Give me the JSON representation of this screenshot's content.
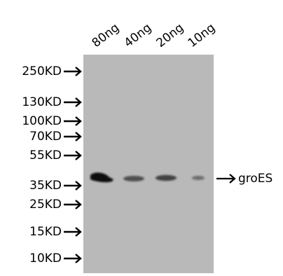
{
  "lanes": [
    {
      "label": "80ng"
    },
    {
      "label": "40ng"
    },
    {
      "label": "20ng"
    },
    {
      "label": "10ng"
    }
  ],
  "markers": [
    {
      "label": "250KD"
    },
    {
      "label": "130KD"
    },
    {
      "label": "100KD"
    },
    {
      "label": "70KD"
    },
    {
      "label": "55KD"
    },
    {
      "label": "35KD"
    },
    {
      "label": "25KD"
    },
    {
      "label": "15KD"
    },
    {
      "label": "10KD"
    }
  ],
  "target": {
    "label": "groES"
  },
  "colors": {
    "membrane": "#b9b9b9",
    "band": "#111111"
  },
  "band_intensity": [
    1.0,
    0.7,
    0.75,
    0.5
  ]
}
